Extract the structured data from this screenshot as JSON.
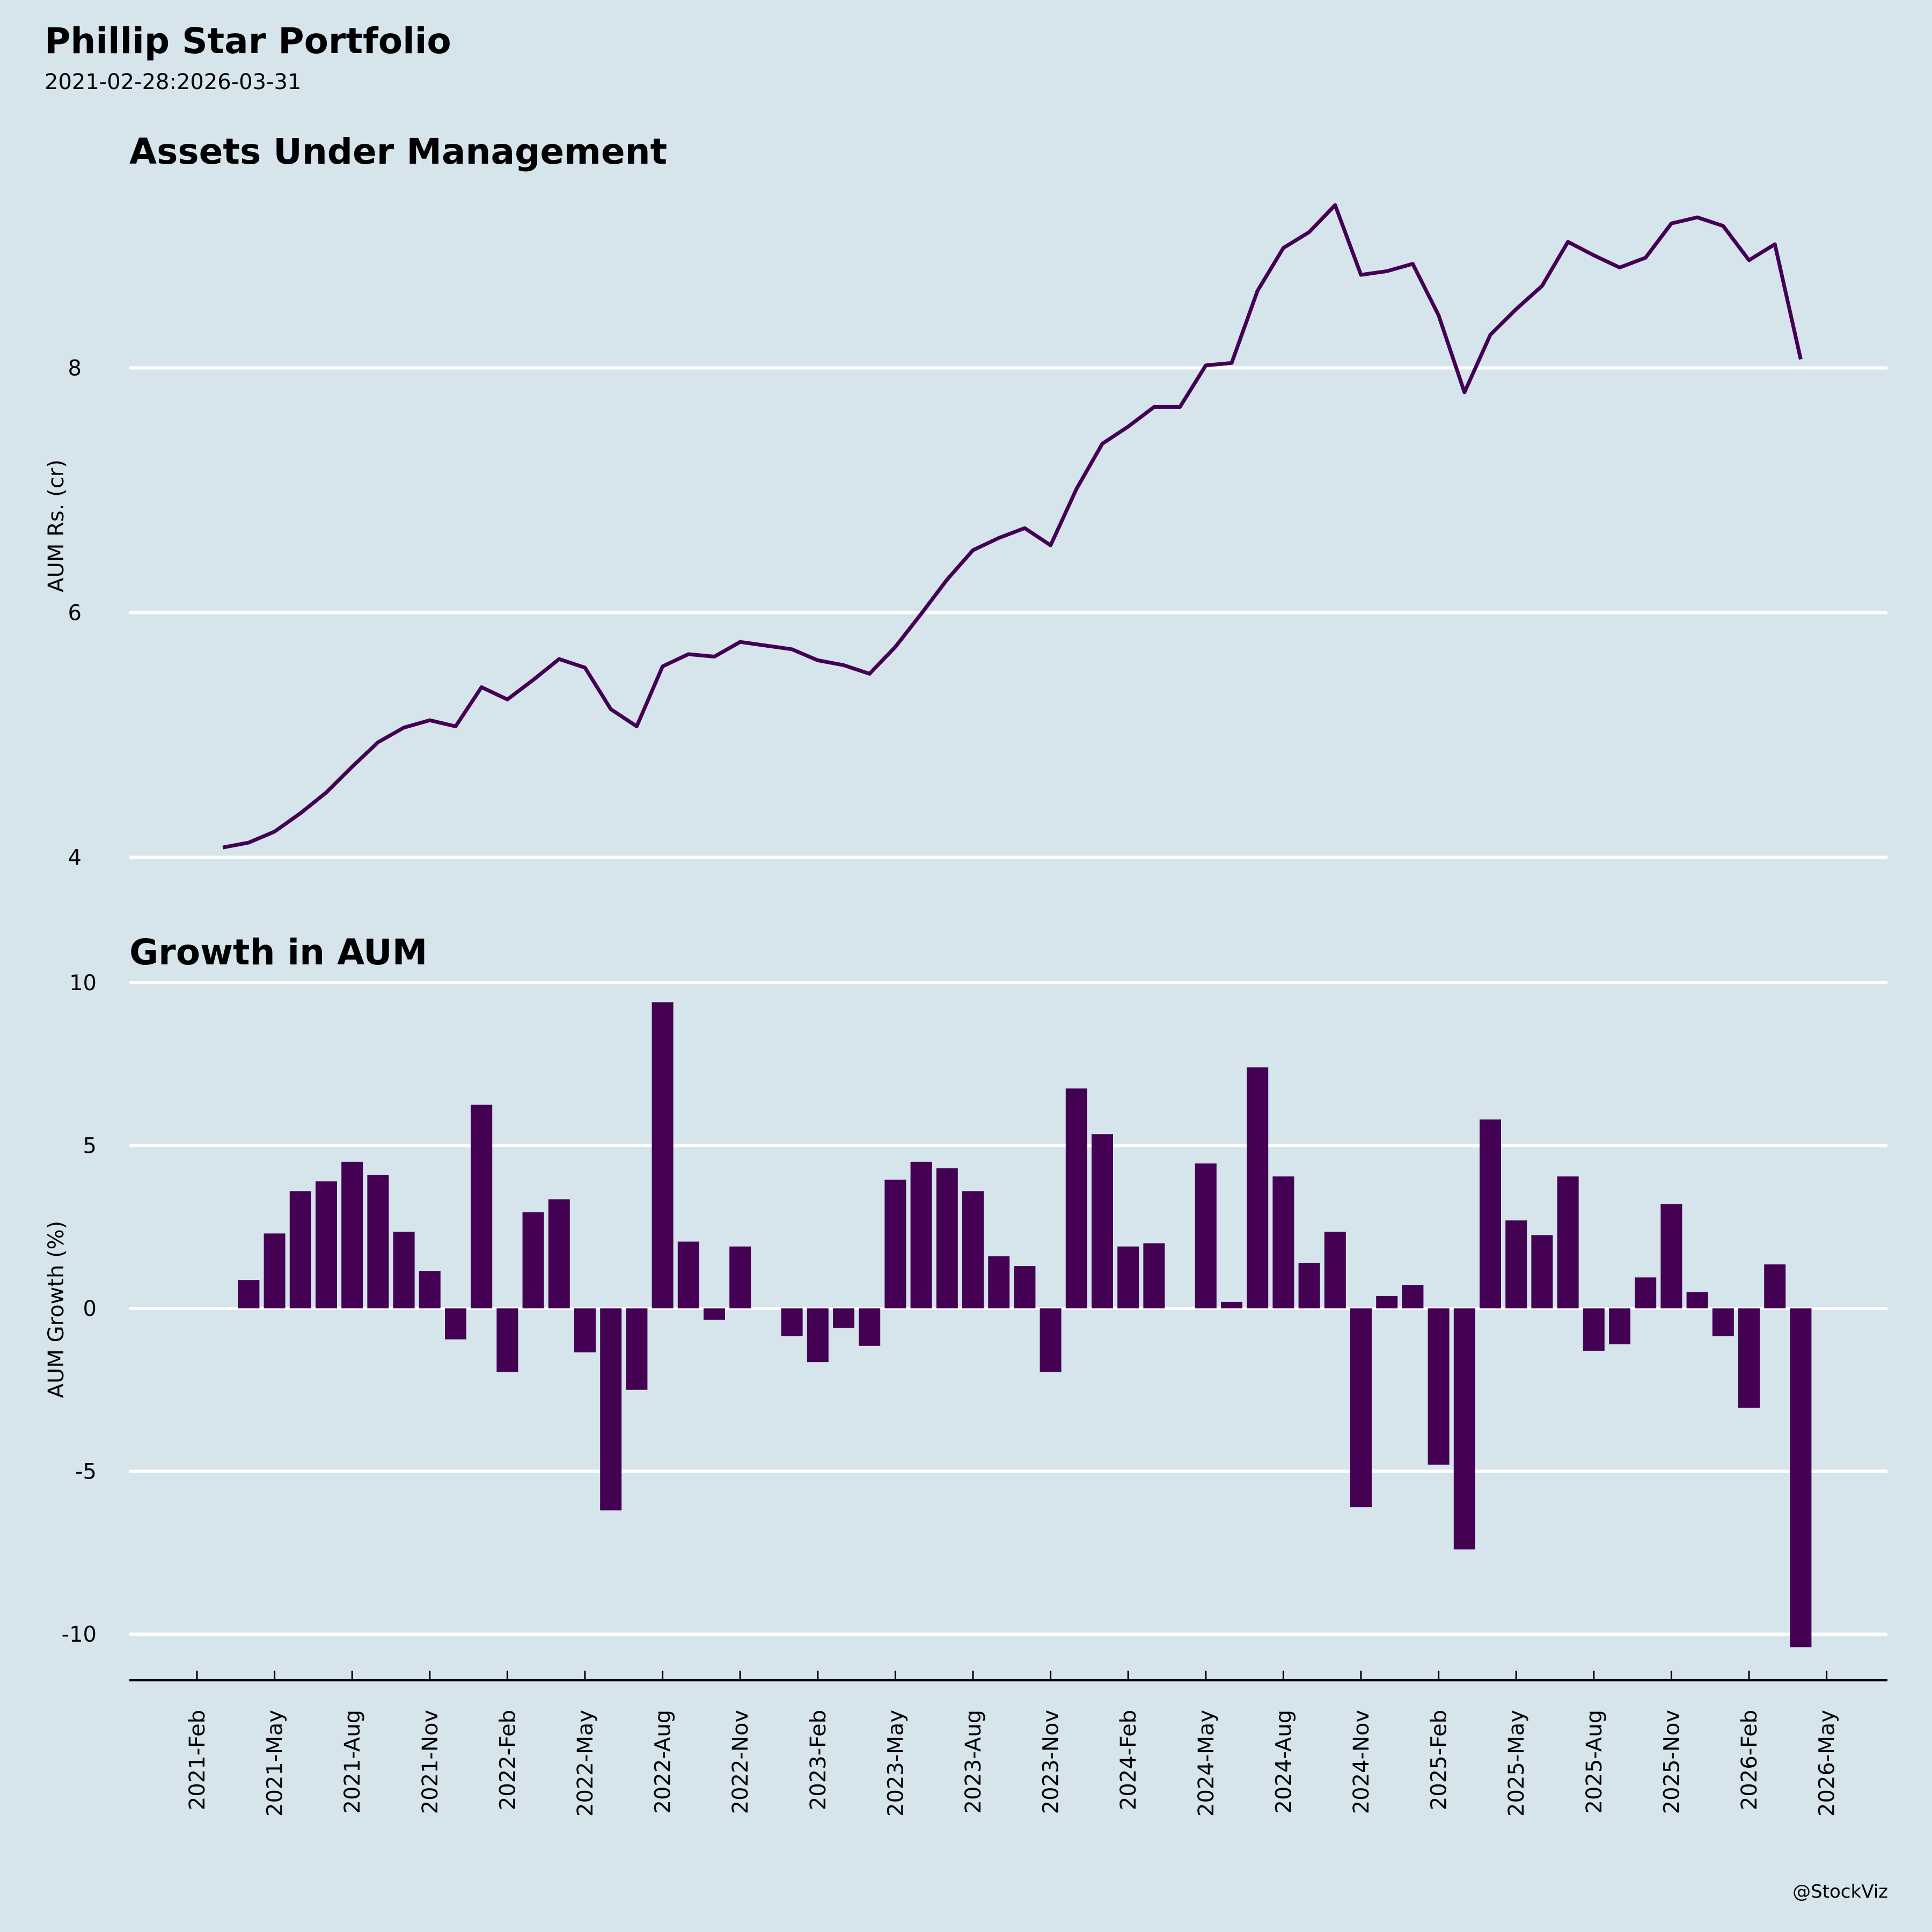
{
  "header": {
    "title": "Phillip Star Portfolio",
    "subtitle": "2021-02-28:2026-03-31",
    "credit": "@StockViz"
  },
  "colors": {
    "background": "#d6e4ec",
    "series": "#440154",
    "grid": "#ffffff"
  },
  "chart_data": [
    {
      "type": "line",
      "title": "Assets Under Management",
      "xlabel": "",
      "ylabel": "AUM Rs. (cr)",
      "yticks": [
        4,
        6,
        8
      ],
      "ylim": [
        3.98,
        9.98
      ],
      "grid": true,
      "x_start_index": 1,
      "values": [
        4.08,
        4.12,
        4.21,
        4.36,
        4.53,
        4.74,
        4.94,
        5.06,
        5.12,
        5.07,
        5.39,
        5.29,
        5.45,
        5.62,
        5.55,
        5.21,
        5.07,
        5.56,
        5.66,
        5.64,
        5.76,
        5.73,
        5.7,
        5.61,
        5.57,
        5.5,
        5.72,
        5.99,
        6.27,
        6.51,
        6.61,
        6.69,
        6.55,
        7.01,
        7.38,
        7.52,
        7.68,
        7.68,
        8.02,
        8.04,
        8.63,
        8.98,
        9.11,
        9.33,
        8.76,
        8.79,
        8.85,
        8.43,
        7.8,
        8.27,
        8.48,
        8.67,
        9.03,
        8.92,
        8.82,
        8.9,
        9.18,
        9.23,
        9.16,
        8.88,
        9.01,
        8.07
      ]
    },
    {
      "type": "bar",
      "title": "Growth in AUM",
      "xlabel": "",
      "ylabel": "AUM Growth (%)",
      "yticks": [
        -10,
        -5,
        0,
        5,
        10
      ],
      "ylim": [
        -11.4,
        10.5
      ],
      "grid": true,
      "x_start_index": 2,
      "values": [
        0.87,
        2.3,
        3.6,
        3.9,
        4.5,
        4.1,
        2.35,
        1.15,
        -0.95,
        6.25,
        -1.95,
        2.95,
        3.35,
        -1.35,
        -6.2,
        -2.5,
        9.4,
        2.05,
        -0.35,
        1.9,
        0,
        -0.85,
        -1.65,
        -0.6,
        -1.15,
        3.95,
        4.5,
        4.3,
        3.6,
        1.6,
        1.3,
        -1.95,
        6.75,
        5.35,
        1.9,
        2.0,
        0,
        4.45,
        0.2,
        7.4,
        4.05,
        1.4,
        2.35,
        -6.1,
        0.38,
        0.72,
        -4.8,
        -7.4,
        5.8,
        2.7,
        2.25,
        4.05,
        -1.3,
        -1.1,
        0.95,
        3.2,
        0.5,
        -0.85,
        -3.05,
        1.35,
        -10.4
      ]
    }
  ],
  "xaxis": {
    "tick_labels": [
      "2021-Feb",
      "2021-May",
      "2021-Aug",
      "2021-Nov",
      "2022-Feb",
      "2022-May",
      "2022-Aug",
      "2022-Nov",
      "2023-Feb",
      "2023-May",
      "2023-Aug",
      "2023-Nov",
      "2024-Feb",
      "2024-May",
      "2024-Aug",
      "2024-Nov",
      "2025-Feb",
      "2025-May",
      "2025-Aug",
      "2025-Nov",
      "2026-Feb",
      "2026-May"
    ],
    "tick_step_months": 3
  }
}
